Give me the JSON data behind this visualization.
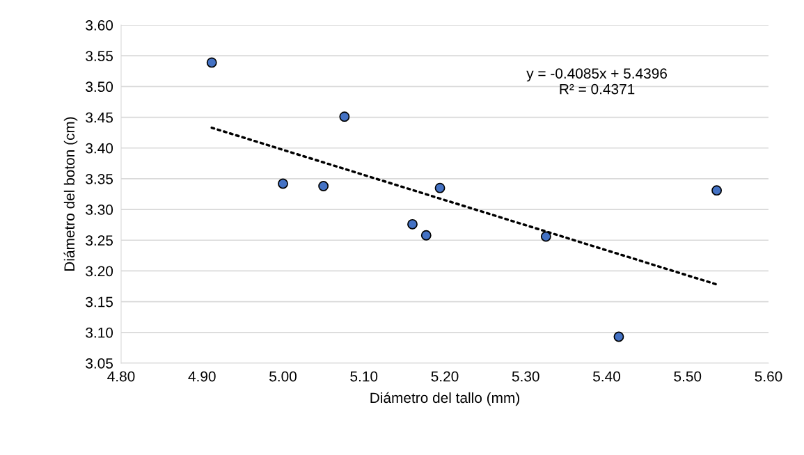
{
  "chart_data": {
    "type": "scatter",
    "xlabel": "Diámetro del tallo (mm)",
    "ylabel": "Diámetro del boton (cm)",
    "series": [
      {
        "color": "#4472c4",
        "marker": "circle",
        "x": [
          4.912,
          5.0,
          5.05,
          5.076,
          5.16,
          5.177,
          5.194,
          5.325,
          5.415,
          5.536
        ],
        "values": [
          3.539,
          3.342,
          3.338,
          3.451,
          3.276,
          3.258,
          3.335,
          3.256,
          3.093,
          3.331
        ]
      },
      {
        "type": "line",
        "color": "#000000",
        "line_style": "dotted",
        "marker": "none",
        "x": [
          4.912,
          5.536
        ],
        "values": [
          3.433,
          3.178
        ]
      }
    ],
    "annotations": [
      "y = -0.4085x + 5.4396",
      "R² = 0.4371"
    ],
    "xlim": [
      4.8,
      5.6
    ],
    "xticks": [
      {
        "value": 4.8,
        "label": "4.80"
      },
      {
        "value": 4.9,
        "label": "4.90"
      },
      {
        "value": 5.0,
        "label": "5.00"
      },
      {
        "value": 5.1,
        "label": "5.10"
      },
      {
        "value": 5.2,
        "label": "5.20"
      },
      {
        "value": 5.3,
        "label": "5.30"
      },
      {
        "value": 5.4,
        "label": "5.40"
      },
      {
        "value": 5.5,
        "label": "5.50"
      },
      {
        "value": 5.6,
        "label": "5.60"
      }
    ],
    "ylim": [
      3.05,
      3.6
    ],
    "yticks": [
      {
        "value": 3.05,
        "label": "3.05"
      },
      {
        "value": 3.1,
        "label": "3.10"
      },
      {
        "value": 3.15,
        "label": "3.15"
      },
      {
        "value": 3.2,
        "label": "3.20"
      },
      {
        "value": 3.25,
        "label": "3.25"
      },
      {
        "value": 3.3,
        "label": "3.30"
      },
      {
        "value": 3.35,
        "label": "3.35"
      },
      {
        "value": 3.4,
        "label": "3.40"
      },
      {
        "value": 3.45,
        "label": "3.45"
      },
      {
        "value": 3.5,
        "label": "3.50"
      },
      {
        "value": 3.55,
        "label": "3.55"
      },
      {
        "value": 3.6,
        "label": "3.60"
      }
    ],
    "grid": "y"
  }
}
